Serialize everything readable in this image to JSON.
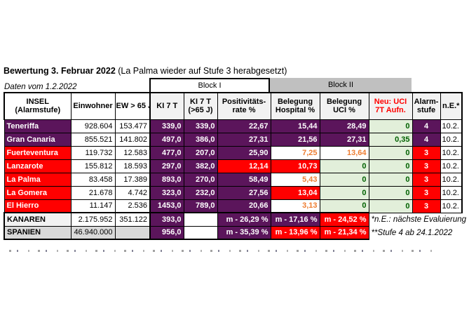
{
  "title": {
    "bold": "Bewertung 3. Februar 2022",
    "rest": " (La Palma wieder auf Stufe 3 herabgesetzt)"
  },
  "subtitle": "Daten vom 1.2.2022",
  "bands": {
    "block1": "Block I",
    "block2": "Block II"
  },
  "columns": {
    "insel_line1": "INSEL",
    "insel_line2": "(Alarmstufe)",
    "einwohner": "Einwohner",
    "ew65": "EW > 65 J",
    "ki7": "KI 7 T",
    "ki7_65_line1": "KI 7 T",
    "ki7_65_line2": "(>65 J)",
    "pos_line1": "Positivitäts-",
    "pos_line2": "rate %",
    "hosp_line1": "Belegung",
    "hosp_line2": "Hospital %",
    "uci_line1": "Belegung",
    "uci_line2": "UCI %",
    "neu_line1": "Neu: UCI",
    "neu_line2": "7T Aufn.",
    "alarm_line1": "Alarm-",
    "alarm_line2": "stufe",
    "ne": "n.E.*"
  },
  "colors": {
    "purple": "#5B155B",
    "red": "#FF0000",
    "orange_text": "#ED7D31",
    "green_bg": "#E2EFDA",
    "green_text": "#006100",
    "band_gray": "#C0C0C0",
    "header_gray": "#F2F2F2"
  },
  "rows": [
    {
      "insel": "Teneriffa",
      "insel_style": "purple",
      "einwohner": "928.604",
      "ew65": "153.477",
      "ki7": "339,0",
      "ki7_65": "339,0",
      "pos": "22,67",
      "pos_style": "purple",
      "hosp": "15,44",
      "hosp_style": "purple",
      "uci": "28,49",
      "uci_style": "purple",
      "neu": "0",
      "stufe": "4",
      "stufe_style": "purple",
      "ne": "10.2."
    },
    {
      "insel": "Gran Canaria",
      "insel_style": "purple",
      "einwohner": "855.521",
      "ew65": "141.802",
      "ki7": "497,0",
      "ki7_65": "386,0",
      "pos": "27,31",
      "pos_style": "purple",
      "hosp": "21,56",
      "hosp_style": "purple",
      "uci": "27,31",
      "uci_style": "purple",
      "neu": "0,35",
      "stufe": "4",
      "stufe_style": "purple",
      "ne": "10.2."
    },
    {
      "insel": "Fuerteventura",
      "insel_style": "red",
      "einwohner": "119.732",
      "ew65": "12.583",
      "ki7": "477,0",
      "ki7_65": "207,0",
      "pos": "25,90",
      "pos_style": "purple",
      "hosp": "7,25",
      "hosp_style": "orange",
      "uci": "13,64",
      "uci_style": "orange",
      "neu": "0",
      "stufe": "3",
      "stufe_style": "red",
      "ne": "10.2."
    },
    {
      "insel": "Lanzarote",
      "insel_style": "red",
      "einwohner": "155.812",
      "ew65": "18.593",
      "ki7": "297,0",
      "ki7_65": "382,0",
      "pos": "12,14",
      "pos_style": "red",
      "hosp": "10,73",
      "hosp_style": "red",
      "uci": "0",
      "uci_style": "green",
      "neu": "0",
      "stufe": "3",
      "stufe_style": "red",
      "ne": "10.2."
    },
    {
      "insel": "La Palma",
      "insel_style": "red",
      "einwohner": "83.458",
      "ew65": "17.389",
      "ki7": "893,0",
      "ki7_65": "270,0",
      "pos": "58,49",
      "pos_style": "purple",
      "hosp": "5,43",
      "hosp_style": "orange",
      "uci": "0",
      "uci_style": "green",
      "neu": "0",
      "stufe": "3",
      "stufe_style": "red",
      "ne": "10.2."
    },
    {
      "insel": "La Gomera",
      "insel_style": "red",
      "einwohner": "21.678",
      "ew65": "4.742",
      "ki7": "323,0",
      "ki7_65": "232,0",
      "pos": "27,56",
      "pos_style": "purple",
      "hosp": "13,04",
      "hosp_style": "red",
      "uci": "0",
      "uci_style": "green",
      "neu": "0",
      "stufe": "3",
      "stufe_style": "red",
      "ne": "10.2."
    },
    {
      "insel": "El Hierro",
      "insel_style": "red",
      "einwohner": "11.147",
      "ew65": "2.536",
      "ki7": "1453,0",
      "ki7_65": "789,0",
      "pos": "20,66",
      "pos_style": "purple",
      "hosp": "3,13",
      "hosp_style": "orange",
      "uci": "0",
      "uci_style": "green",
      "neu": "0",
      "stufe": "3",
      "stufe_style": "red",
      "ne": "10.2."
    }
  ],
  "kanaren": {
    "insel": "KANAREN",
    "einwohner": "2.175.952",
    "ew65": "351.122",
    "ki7": "393,0",
    "pos": "m - 26,29 %",
    "hosp": "m - 17,16 %",
    "uci": "m - 24,52 %",
    "note": "*n.E.: nächste Evaluierung"
  },
  "spanien": {
    "insel": "SPANIEN",
    "einwohner": "46.940.000",
    "ki7": "956,0",
    "pos": "m - 35,39 %",
    "hosp": "m - 13,96 %",
    "uci": "m - 21,34 %",
    "note": "**Stufe 4 ab 24.1.2022"
  }
}
